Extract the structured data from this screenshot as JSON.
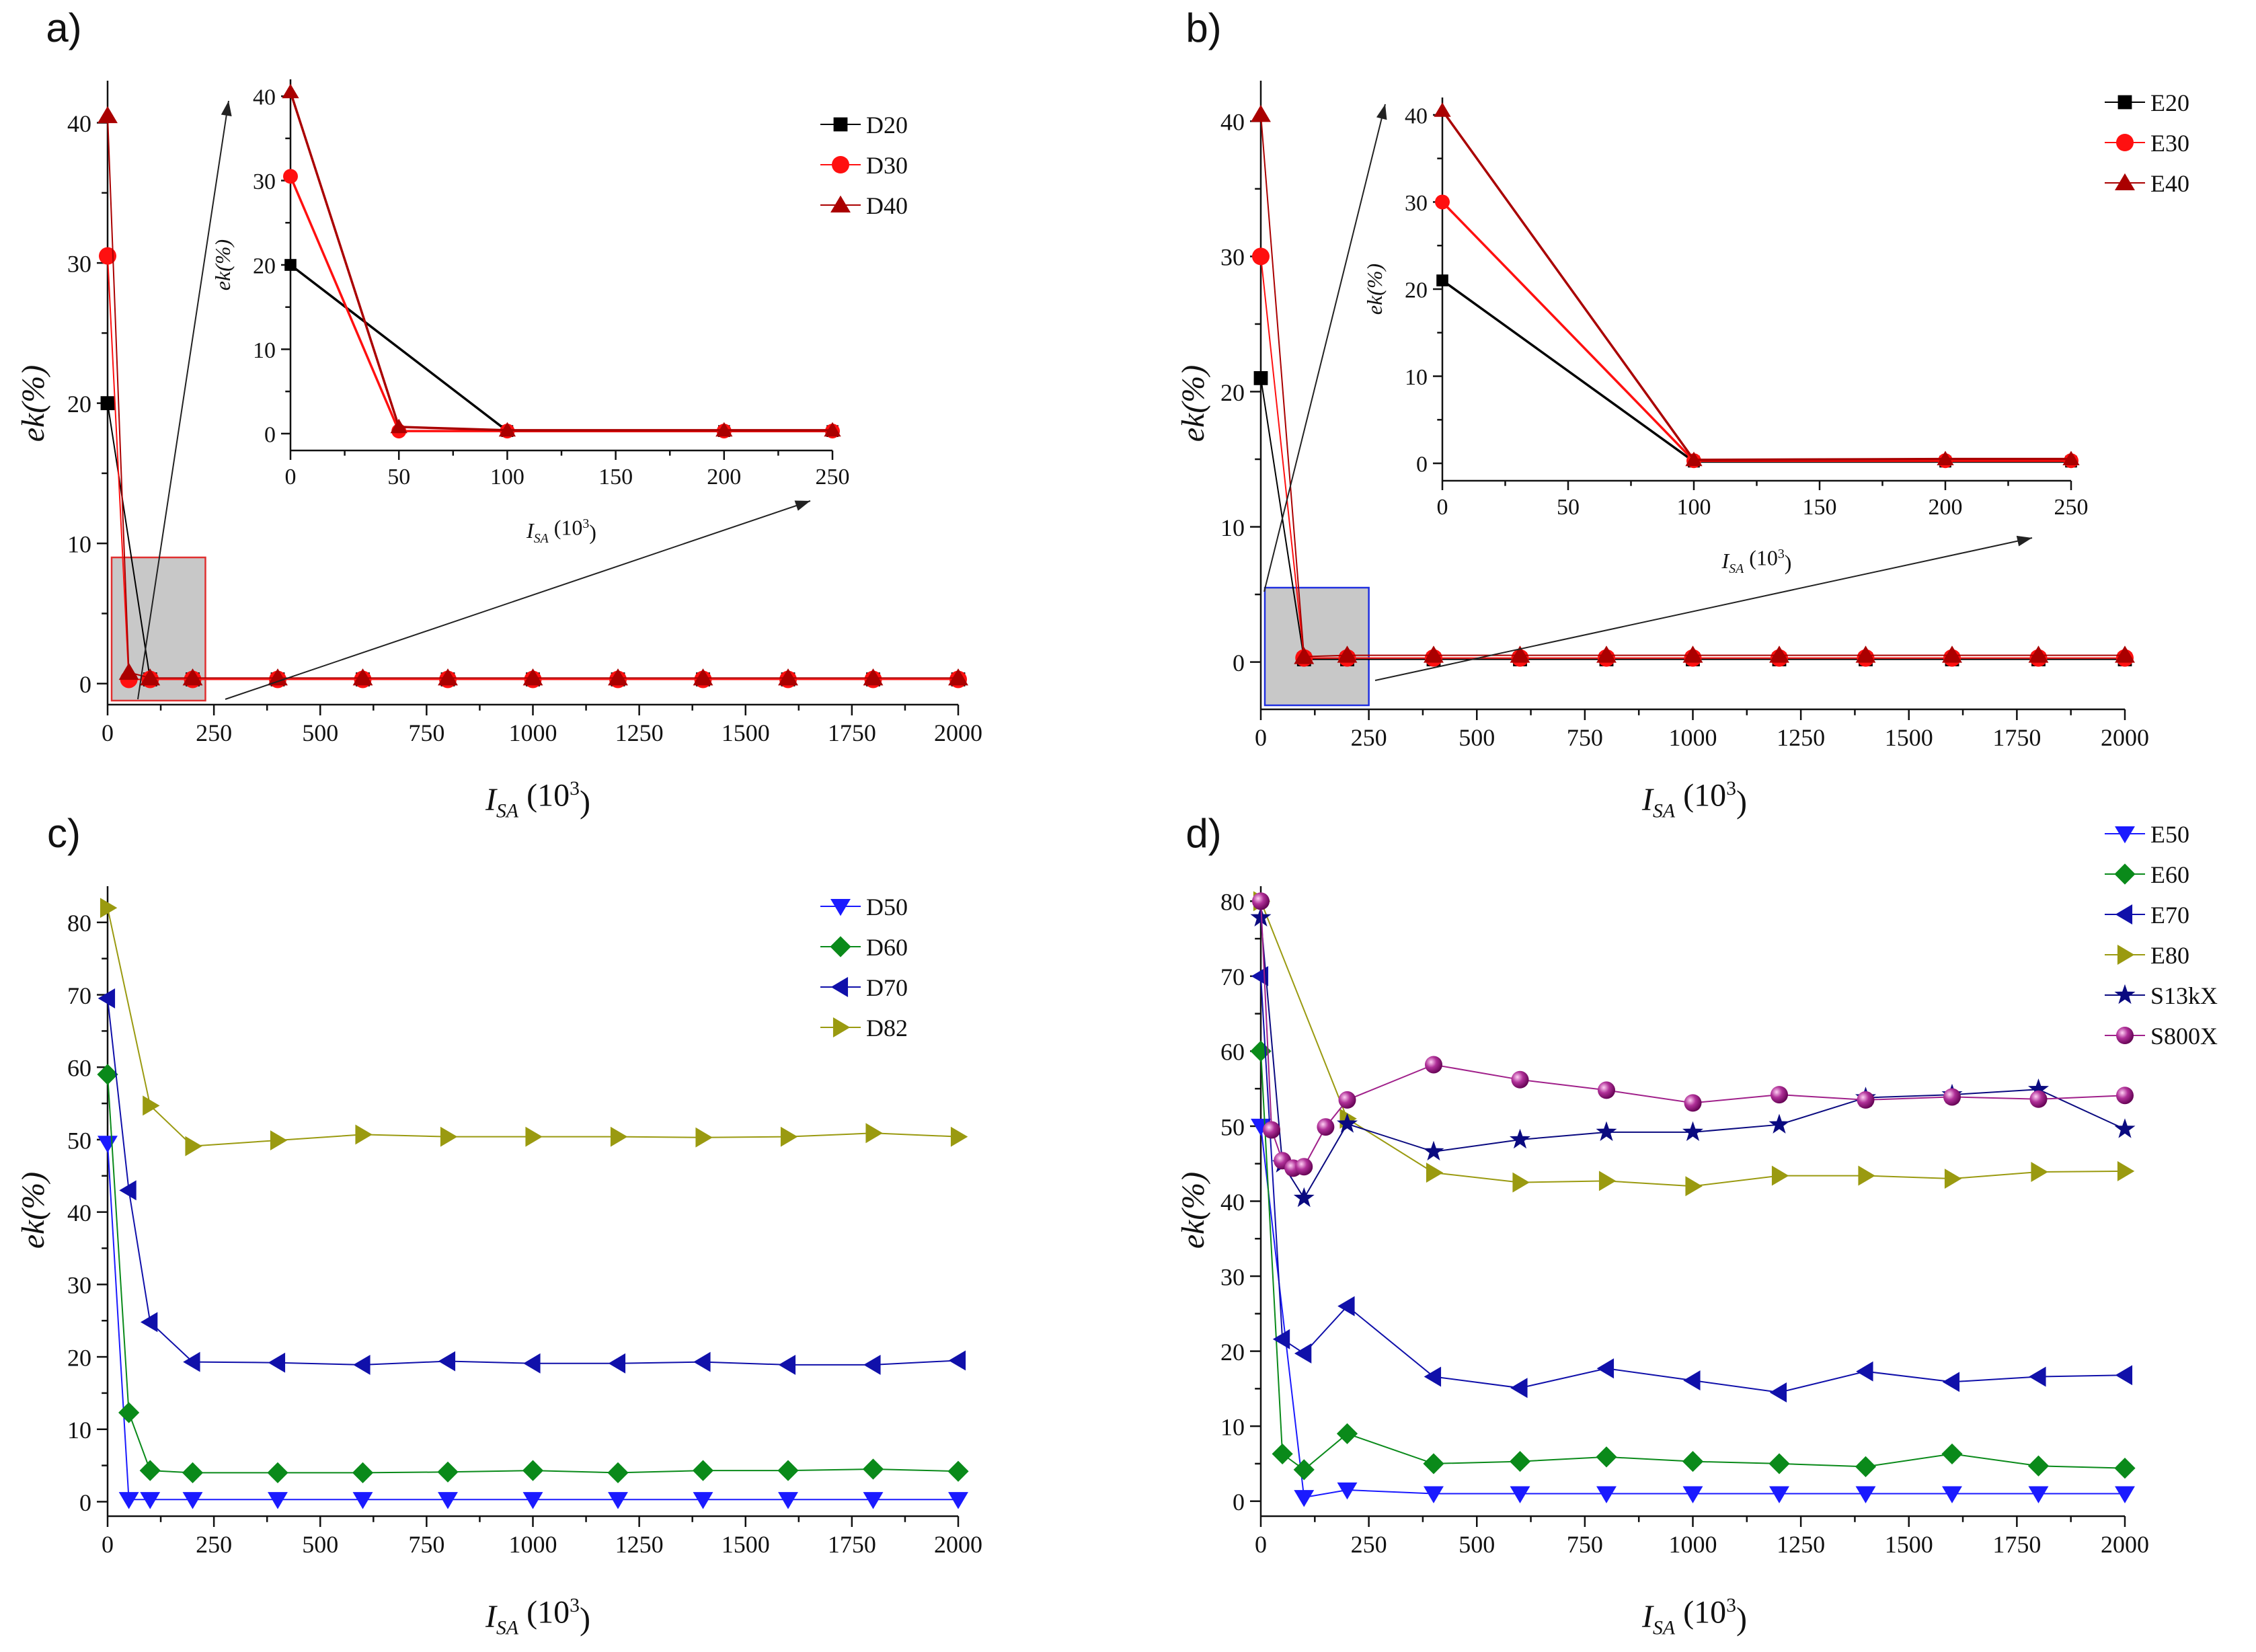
{
  "figure": {
    "xlabel_main": "I",
    "xlabel_sub": "SA",
    "xlabel_unit": " (10",
    "xlabel_exp": "3",
    "xlabel_close": ")",
    "ylabel": "ek(%)"
  },
  "chart_data": [
    {
      "panel": "a)",
      "type": "line",
      "xlim": [
        0,
        2000
      ],
      "ylim": [
        -1.5,
        43
      ],
      "xticks": [
        0,
        250,
        500,
        750,
        1000,
        1250,
        1500,
        1750,
        2000
      ],
      "yticks": [
        0,
        10,
        20,
        30,
        40
      ],
      "zoom_region": {
        "x": [
          0,
          230
        ],
        "y": [
          -1.5,
          9
        ],
        "fill": "#c8c8c8",
        "stroke": "#e03030"
      },
      "series": [
        {
          "name": "D20",
          "color": "#000000",
          "marker": "square",
          "x": [
            0,
            100,
            200,
            400,
            600,
            800,
            1000,
            1200,
            1400,
            1600,
            1800,
            2000
          ],
          "y": [
            20,
            0.3,
            0.3,
            0.3,
            0.3,
            0.3,
            0.3,
            0.3,
            0.3,
            0.3,
            0.3,
            0.3
          ]
        },
        {
          "name": "D30",
          "color": "#ff1010",
          "marker": "circle",
          "x": [
            0,
            50,
            100,
            200,
            400,
            600,
            800,
            1000,
            1200,
            1400,
            1600,
            1800,
            2000
          ],
          "y": [
            30.5,
            0.3,
            0.3,
            0.3,
            0.3,
            0.3,
            0.3,
            0.3,
            0.3,
            0.3,
            0.3,
            0.3,
            0.3
          ]
        },
        {
          "name": "D40",
          "color": "#aa0000",
          "marker": "triangle-up",
          "x": [
            0,
            50,
            100,
            200,
            400,
            600,
            800,
            1000,
            1200,
            1400,
            1600,
            1800,
            2000
          ],
          "y": [
            40.5,
            0.8,
            0.4,
            0.4,
            0.4,
            0.4,
            0.4,
            0.4,
            0.4,
            0.4,
            0.4,
            0.4,
            0.4
          ]
        }
      ],
      "inset": {
        "xlim": [
          0,
          250
        ],
        "ylim": [
          -2,
          42
        ],
        "xticks": [
          0,
          50,
          100,
          150,
          200,
          250
        ],
        "yticks": [
          0,
          10,
          20,
          30,
          40
        ],
        "series": [
          {
            "name": "D20",
            "color": "#000000",
            "marker": "square",
            "x": [
              0,
              100,
              200,
              250
            ],
            "y": [
              20,
              0.3,
              0.3,
              0.3
            ]
          },
          {
            "name": "D30",
            "color": "#ff1010",
            "marker": "circle",
            "x": [
              0,
              50,
              100,
              200,
              250
            ],
            "y": [
              30.5,
              0.3,
              0.3,
              0.3,
              0.3
            ]
          },
          {
            "name": "D40",
            "color": "#aa0000",
            "marker": "triangle-up",
            "x": [
              0,
              50,
              100,
              200,
              250
            ],
            "y": [
              40.5,
              0.8,
              0.4,
              0.4,
              0.4
            ]
          }
        ]
      }
    },
    {
      "panel": "b)",
      "type": "line",
      "xlim": [
        0,
        2000
      ],
      "ylim": [
        -3.5,
        43
      ],
      "xticks": [
        0,
        250,
        500,
        750,
        1000,
        1250,
        1500,
        1750,
        2000
      ],
      "yticks": [
        0,
        10,
        20,
        30,
        40
      ],
      "zoom_region": {
        "x": [
          0,
          250
        ],
        "y": [
          -3.5,
          5.5
        ],
        "fill": "#c8c8c8",
        "stroke": "#2030e0"
      },
      "series": [
        {
          "name": "E20",
          "color": "#000000",
          "marker": "square",
          "x": [
            0,
            100,
            200,
            400,
            600,
            800,
            1000,
            1200,
            1400,
            1600,
            1800,
            2000
          ],
          "y": [
            21,
            0.2,
            0.2,
            0.2,
            0.2,
            0.2,
            0.2,
            0.2,
            0.2,
            0.2,
            0.2,
            0.2
          ]
        },
        {
          "name": "E30",
          "color": "#ff1010",
          "marker": "circle",
          "x": [
            0,
            100,
            200,
            400,
            600,
            800,
            1000,
            1200,
            1400,
            1600,
            1800,
            2000
          ],
          "y": [
            30,
            0.3,
            0.3,
            0.3,
            0.3,
            0.3,
            0.3,
            0.3,
            0.3,
            0.3,
            0.3,
            0.3
          ]
        },
        {
          "name": "E40",
          "color": "#aa0000",
          "marker": "triangle-up",
          "x": [
            0,
            100,
            200,
            400,
            600,
            800,
            1000,
            1200,
            1400,
            1600,
            1800,
            2000
          ],
          "y": [
            40.5,
            0.4,
            0.5,
            0.5,
            0.5,
            0.5,
            0.5,
            0.5,
            0.5,
            0.5,
            0.5,
            0.5
          ]
        }
      ],
      "inset": {
        "xlim": [
          0,
          250
        ],
        "ylim": [
          -2,
          42
        ],
        "xticks": [
          0,
          50,
          100,
          150,
          200,
          250
        ],
        "yticks": [
          0,
          10,
          20,
          30,
          40
        ],
        "series": [
          {
            "name": "E20",
            "color": "#000000",
            "marker": "square",
            "x": [
              0,
              100,
              200,
              250
            ],
            "y": [
              21,
              0.2,
              0.2,
              0.2
            ]
          },
          {
            "name": "E30",
            "color": "#ff1010",
            "marker": "circle",
            "x": [
              0,
              100,
              200,
              250
            ],
            "y": [
              30,
              0.3,
              0.3,
              0.3
            ]
          },
          {
            "name": "E40",
            "color": "#aa0000",
            "marker": "triangle-up",
            "x": [
              0,
              100,
              200,
              250
            ],
            "y": [
              40.5,
              0.4,
              0.5,
              0.5
            ]
          }
        ]
      }
    },
    {
      "panel": "c)",
      "type": "line",
      "xlim": [
        0,
        2000
      ],
      "ylim": [
        -2,
        85
      ],
      "xticks": [
        0,
        250,
        500,
        750,
        1000,
        1250,
        1500,
        1750,
        2000
      ],
      "yticks": [
        0,
        10,
        20,
        30,
        40,
        50,
        60,
        70,
        80
      ],
      "series": [
        {
          "name": "D50",
          "color": "#1a1aff",
          "marker": "triangle-down",
          "x": [
            0,
            50,
            100,
            200,
            400,
            600,
            800,
            1000,
            1200,
            1400,
            1600,
            1800,
            2000
          ],
          "y": [
            49.5,
            0.3,
            0.3,
            0.3,
            0.3,
            0.3,
            0.3,
            0.3,
            0.3,
            0.3,
            0.3,
            0.3,
            0.3
          ]
        },
        {
          "name": "D60",
          "color": "#0a8a1a",
          "marker": "diamond",
          "x": [
            0,
            50,
            100,
            200,
            400,
            600,
            800,
            1000,
            1200,
            1400,
            1600,
            1800,
            2000
          ],
          "y": [
            59,
            12.3,
            4.3,
            4,
            4,
            4,
            4.1,
            4.3,
            4,
            4.3,
            4.3,
            4.5,
            4.2
          ]
        },
        {
          "name": "D70",
          "color": "#1010aa",
          "marker": "triangle-left",
          "x": [
            0,
            50,
            100,
            200,
            400,
            600,
            800,
            1000,
            1200,
            1400,
            1600,
            1800,
            2000
          ],
          "y": [
            69.5,
            43,
            24.8,
            19.3,
            19.2,
            18.9,
            19.4,
            19.1,
            19.1,
            19.3,
            18.9,
            18.9,
            19.5
          ]
        },
        {
          "name": "D82",
          "color": "#9a9a10",
          "marker": "triangle-right",
          "x": [
            0,
            100,
            200,
            400,
            600,
            800,
            1000,
            1200,
            1400,
            1600,
            1800,
            2000
          ],
          "y": [
            82,
            54.7,
            49.1,
            49.9,
            50.7,
            50.4,
            50.4,
            50.4,
            50.3,
            50.4,
            50.9,
            50.4
          ]
        }
      ]
    },
    {
      "panel": "d)",
      "type": "line",
      "xlim": [
        0,
        2000
      ],
      "ylim": [
        -2,
        82
      ],
      "xticks": [
        0,
        250,
        500,
        750,
        1000,
        1250,
        1500,
        1750,
        2000
      ],
      "yticks": [
        0,
        10,
        20,
        30,
        40,
        50,
        60,
        70,
        80
      ],
      "series": [
        {
          "name": "E50",
          "color": "#1a1aff",
          "marker": "triangle-down",
          "x": [
            0,
            100,
            200,
            400,
            600,
            800,
            1000,
            1200,
            1400,
            1600,
            1800,
            2000
          ],
          "y": [
            50,
            0.5,
            1.5,
            1,
            1,
            1,
            1,
            1,
            1,
            1,
            1,
            1
          ]
        },
        {
          "name": "E60",
          "color": "#0a8a1a",
          "marker": "diamond",
          "x": [
            0,
            50,
            100,
            200,
            400,
            600,
            800,
            1000,
            1200,
            1400,
            1600,
            1800,
            2000
          ],
          "y": [
            60,
            6.3,
            4.2,
            9,
            5,
            5.3,
            5.9,
            5.3,
            5,
            4.6,
            6.3,
            4.7,
            4.4
          ]
        },
        {
          "name": "E70",
          "color": "#1010aa",
          "marker": "triangle-left",
          "x": [
            0,
            50,
            100,
            200,
            400,
            600,
            800,
            1000,
            1200,
            1400,
            1600,
            1800,
            2000
          ],
          "y": [
            70,
            21.6,
            19.7,
            26,
            16.6,
            15.1,
            17.7,
            16.1,
            14.5,
            17.3,
            15.9,
            16.6,
            16.8
          ]
        },
        {
          "name": "E80",
          "color": "#9a9a10",
          "marker": "triangle-right",
          "x": [
            0,
            200,
            400,
            600,
            800,
            1000,
            1200,
            1400,
            1600,
            1800,
            2000
          ],
          "y": [
            80,
            51,
            43.8,
            42.5,
            42.7,
            42,
            43.4,
            43.4,
            43,
            43.9,
            44
          ]
        },
        {
          "name": "S13kX",
          "color": "#0a0a80",
          "marker": "star",
          "x": [
            0,
            50,
            100,
            200,
            400,
            600,
            800,
            1000,
            1200,
            1400,
            1600,
            1800,
            2000
          ],
          "y": [
            77.8,
            45,
            40.4,
            50.3,
            46.6,
            48.2,
            49.2,
            49.2,
            50.2,
            53.8,
            54.2,
            54.9,
            49.6
          ]
        },
        {
          "name": "S800X",
          "color": "#a0208a",
          "marker": "sphere",
          "x": [
            0,
            25,
            50,
            75,
            100,
            150,
            200,
            400,
            600,
            800,
            1000,
            1200,
            1400,
            1600,
            1800,
            2000
          ],
          "y": [
            80,
            49.5,
            45.4,
            44.4,
            44.6,
            49.9,
            53.5,
            58.2,
            56.2,
            54.8,
            53.1,
            54.2,
            53.5,
            53.9,
            53.6,
            54.1
          ]
        }
      ]
    }
  ]
}
